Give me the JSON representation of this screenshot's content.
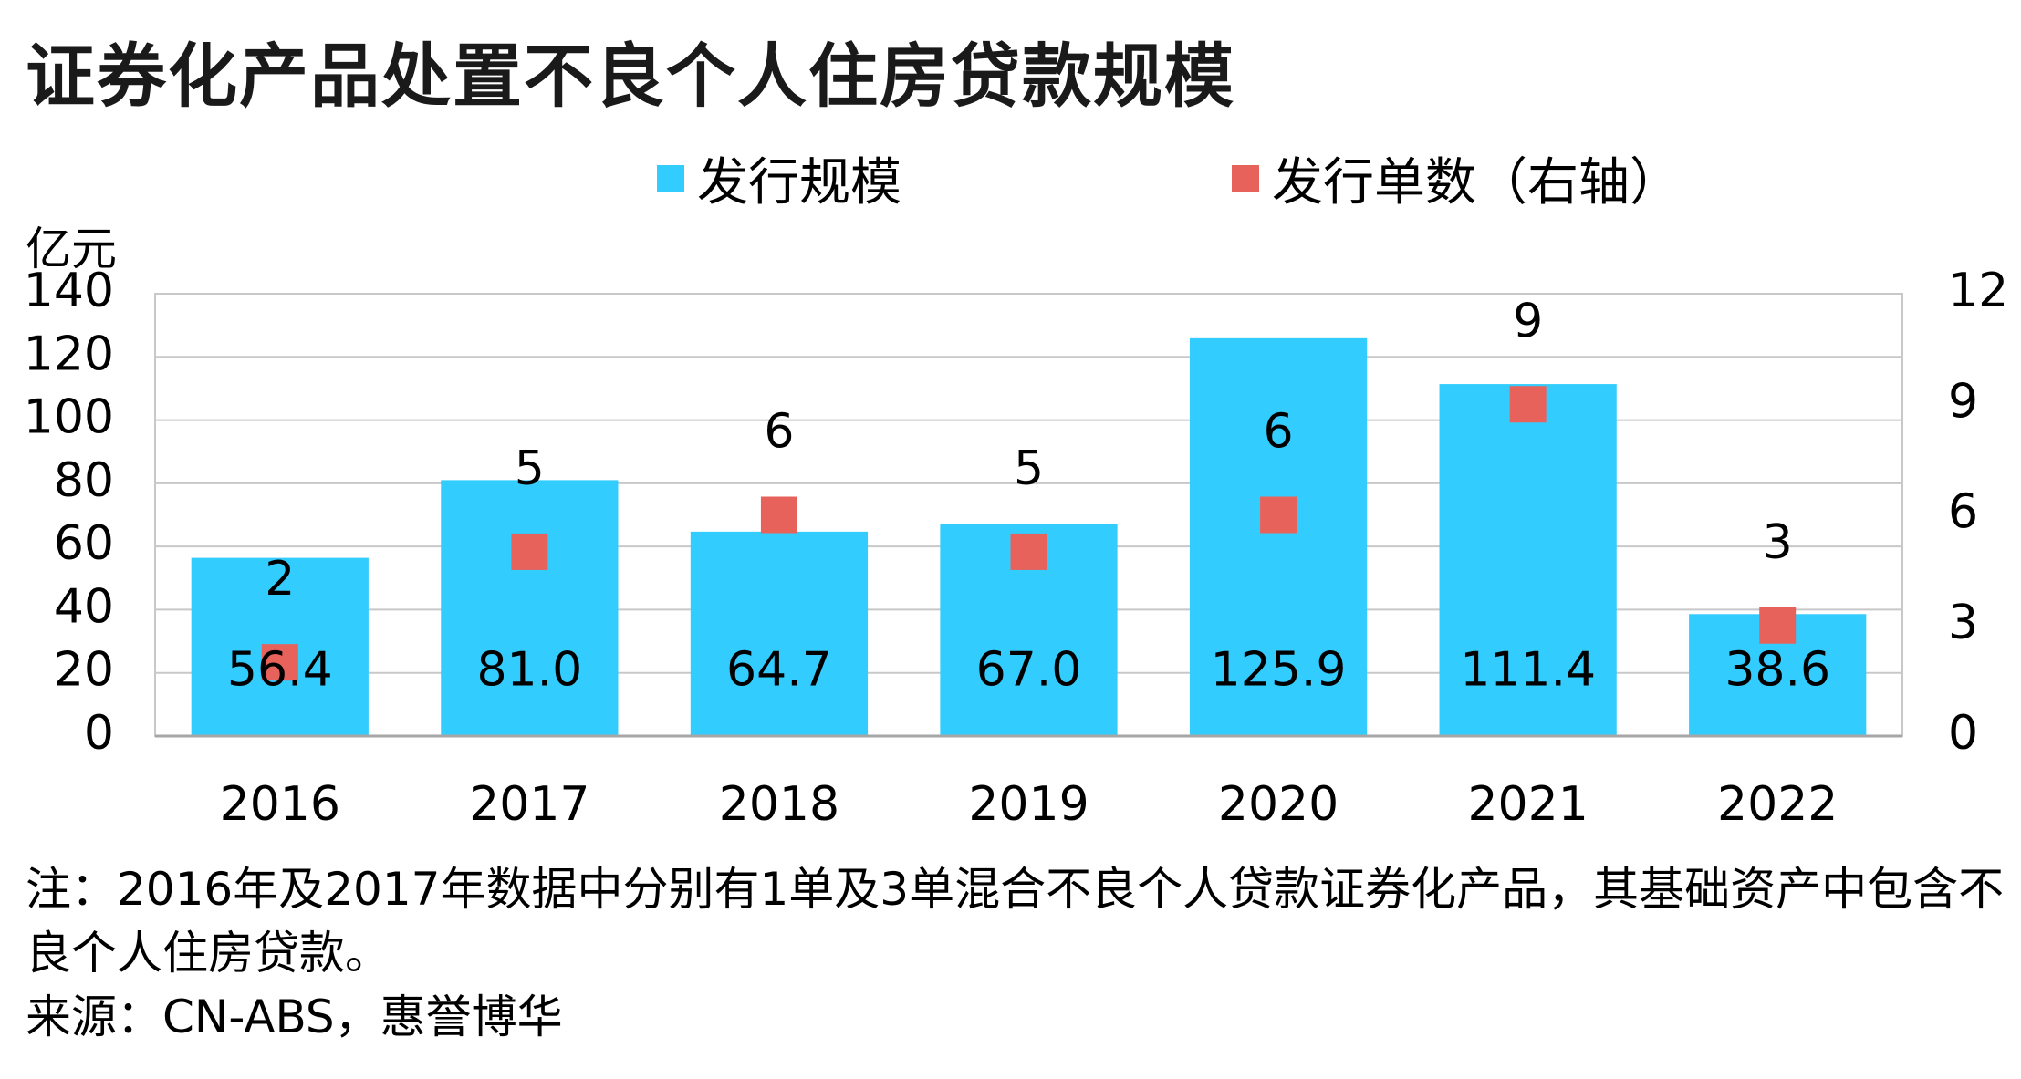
{
  "title": "证券化产品处置不良个人住房贷款规模",
  "legend": {
    "bar": "发行规模",
    "point": "发行单数（右轴）"
  },
  "y_unit": "亿元",
  "note": "注：2016年及2017年数据中分别有1单及3单混合不良个人贷款证券化产品，其基础资产中包含不良个人住房贷款。",
  "source": "来源：CN-ABS，惠誉博华",
  "chart_data": {
    "type": "bar",
    "categories": [
      "2016",
      "2017",
      "2018",
      "2019",
      "2020",
      "2021",
      "2022"
    ],
    "series": [
      {
        "name": "发行规模",
        "type": "bar",
        "axis": "left",
        "values": [
          56.4,
          81.0,
          64.7,
          67.0,
          125.9,
          111.4,
          38.6
        ],
        "labels": [
          "56.4",
          "81.0",
          "64.7",
          "67.0",
          "125.9",
          "111.4",
          "38.6"
        ],
        "color": "#33CCFF"
      },
      {
        "name": "发行单数（右轴）",
        "type": "scatter",
        "axis": "right",
        "values": [
          2,
          5,
          6,
          5,
          6,
          9,
          3
        ],
        "color": "#E8625C"
      }
    ],
    "y_left": {
      "min": 0,
      "max": 140,
      "ticks": [
        0,
        20,
        40,
        60,
        80,
        100,
        120,
        140
      ],
      "label": "亿元"
    },
    "y_right": {
      "min": 0,
      "max": 12,
      "ticks": [
        0,
        3,
        6,
        9,
        12
      ]
    },
    "grid": true,
    "legend_position": "top"
  }
}
